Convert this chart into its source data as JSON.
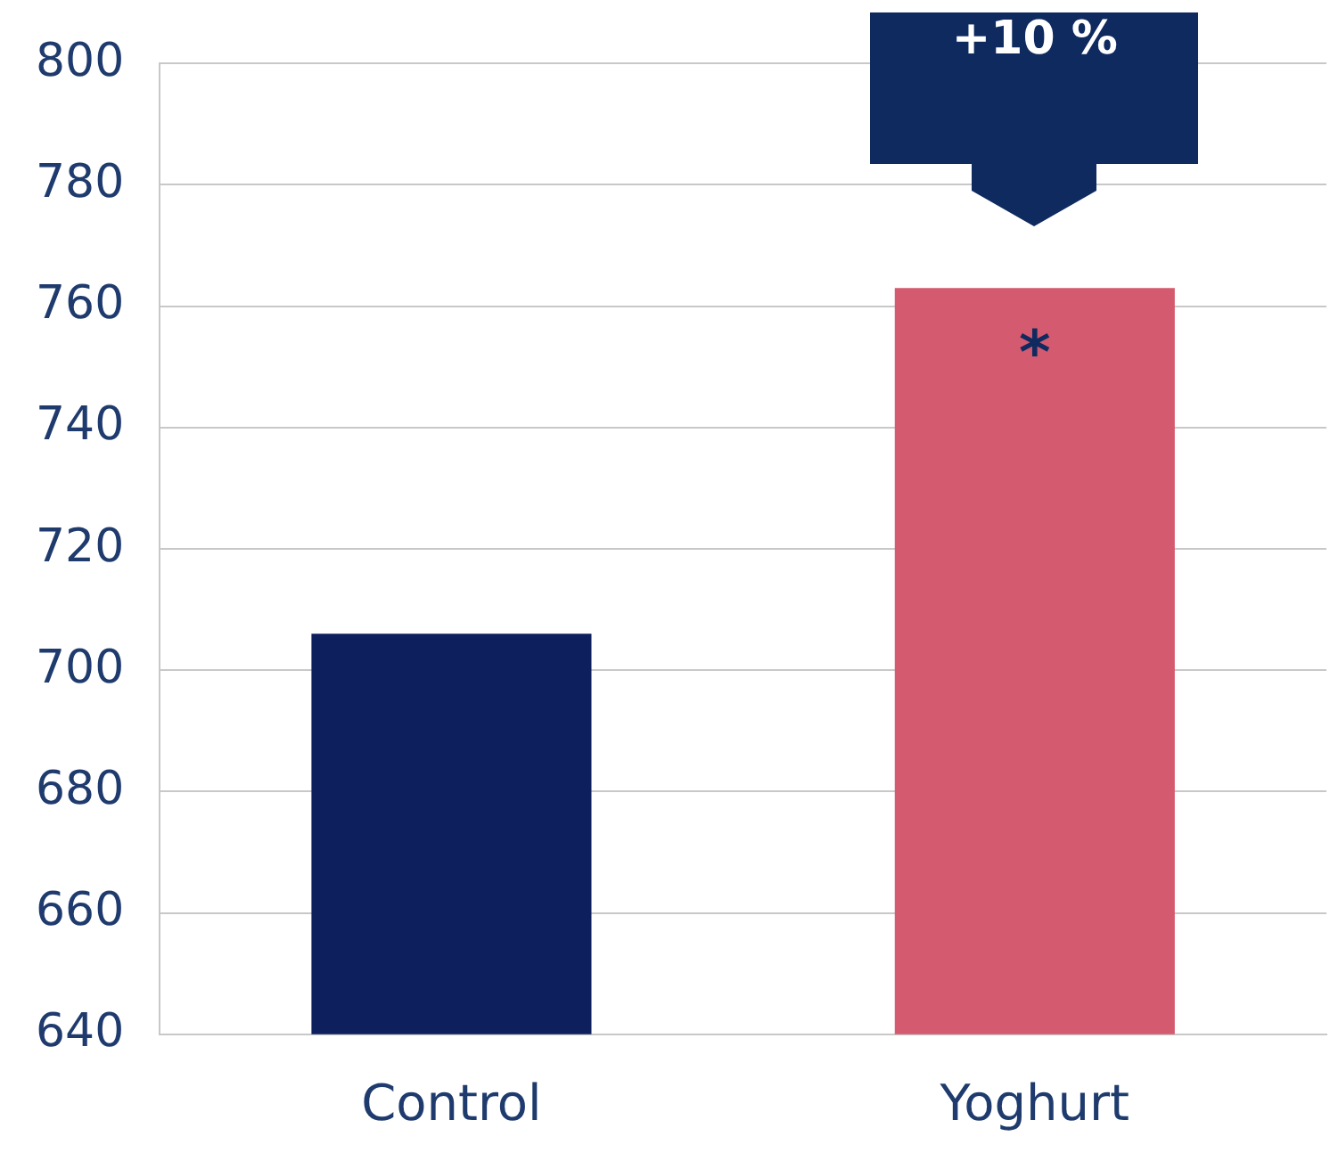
{
  "chart_data": {
    "type": "bar",
    "categories": [
      "Control",
      "Yoghurt"
    ],
    "values": [
      706,
      763
    ],
    "colors": [
      "#0d1f5c",
      "#d45a70"
    ],
    "ylim": [
      640,
      800
    ],
    "yticks": [
      640,
      660,
      680,
      700,
      720,
      740,
      760,
      780,
      800
    ],
    "grid": "y",
    "legend": false,
    "annotations": [
      "+10 %",
      {
        "text": "*",
        "x": "Yoghurt",
        "y": 763
      }
    ]
  }
}
